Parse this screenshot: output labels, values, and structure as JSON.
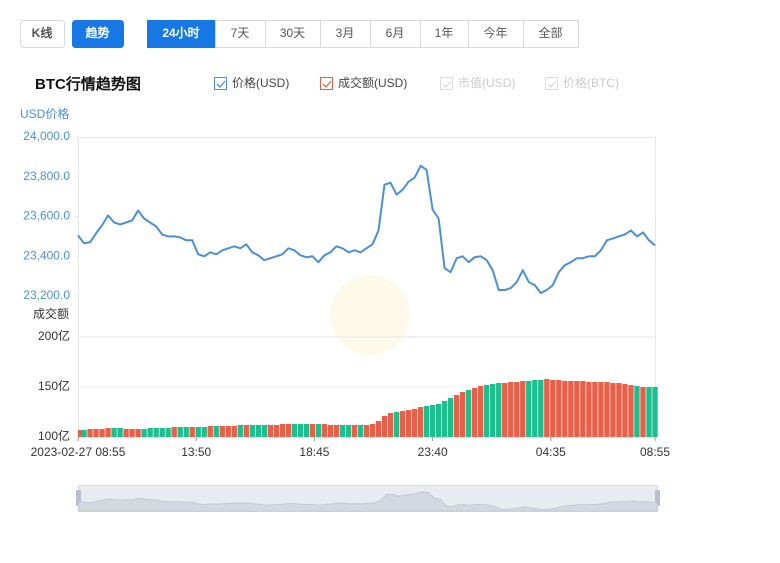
{
  "tabs": [
    "K线",
    "趋势"
  ],
  "active_tab": 1,
  "ranges": [
    "24小时",
    "7天",
    "30天",
    "3月",
    "6月",
    "1年",
    "今年",
    "全部"
  ],
  "active_range": 0,
  "chart_data": {
    "type": "line",
    "title": "BTC行情趋势图",
    "y_label": "USD价格",
    "y2_label": "成交额",
    "series": [
      {
        "name": "价格(USD)",
        "color": "#4a90d9",
        "values": [
          23505,
          23465,
          23470,
          23515,
          23555,
          23605,
          23570,
          23560,
          23570,
          23580,
          23630,
          23590,
          23570,
          23550,
          23510,
          23500,
          23500,
          23495,
          23480,
          23480,
          23410,
          23400,
          23420,
          23410,
          23430,
          23440,
          23450,
          23440,
          23460,
          23420,
          23405,
          23380,
          23390,
          23400,
          23410,
          23440,
          23430,
          23405,
          23395,
          23400,
          23370,
          23405,
          23420,
          23450,
          23440,
          23420,
          23430,
          23420,
          23440,
          23460,
          23530,
          23760,
          23770,
          23710,
          23735,
          23775,
          23795,
          23855,
          23835,
          23635,
          23590,
          23340,
          23320,
          23390,
          23400,
          23370,
          23395,
          23400,
          23380,
          23330,
          23230,
          23230,
          23240,
          23270,
          23330,
          23270,
          23255,
          23215,
          23230,
          23255,
          23320,
          23355,
          23370,
          23390,
          23390,
          23400,
          23400,
          23430,
          23480,
          23490,
          23500,
          23510,
          23530,
          23500,
          23520,
          23480,
          23455
        ]
      },
      {
        "name": "成交额(USD)",
        "color": "#e9604a",
        "axis": "y2",
        "up_color": "#e9604a",
        "down_color": "#1dbf8f",
        "values": [
          107,
          107,
          108,
          108,
          108,
          109,
          109,
          109,
          108,
          108,
          108,
          108,
          109,
          109,
          109,
          109,
          110,
          110,
          110,
          110,
          110,
          110,
          111,
          111,
          111,
          111,
          111,
          112,
          112,
          112,
          112,
          112,
          112,
          112,
          113,
          113,
          113,
          113,
          113,
          113,
          113,
          113,
          112,
          112,
          112,
          112,
          112,
          112,
          112,
          113,
          116,
          121,
          124,
          125,
          126,
          127,
          128,
          130,
          131,
          132,
          133,
          136,
          139,
          142,
          145,
          147,
          149,
          151,
          152,
          153,
          154,
          154,
          155,
          155,
          156,
          156,
          157,
          157,
          158,
          157,
          157,
          156,
          156,
          156,
          156,
          155,
          155,
          155,
          155,
          154,
          154,
          153,
          152,
          151,
          150,
          150,
          150
        ]
      }
    ],
    "inactive_series": [
      "市值(USD)",
      "价格(BTC)"
    ],
    "x": [
      0,
      15,
      30,
      45,
      60,
      75,
      90,
      105,
      120,
      135,
      150,
      165,
      180,
      195,
      210,
      225,
      240,
      255,
      270,
      285,
      300,
      315,
      330,
      345,
      360,
      375,
      390,
      405,
      420,
      435,
      450,
      465,
      480,
      495,
      510,
      525,
      540,
      555,
      570,
      585,
      600,
      615,
      630,
      645,
      660,
      675,
      690,
      705,
      720,
      735,
      750,
      765,
      780,
      795,
      810,
      825,
      840,
      855,
      870,
      885,
      900,
      915,
      930,
      945,
      960,
      975,
      990,
      1005,
      1020,
      1035,
      1050,
      1065,
      1080,
      1095,
      1110,
      1125,
      1140,
      1155,
      1170,
      1185,
      1200,
      1215,
      1230,
      1245,
      1260,
      1275,
      1290,
      1305,
      1320,
      1335,
      1350,
      1365,
      1380,
      1395,
      1410,
      1425,
      1440
    ],
    "xlim": [
      0,
      1440
    ],
    "xticks": [
      {
        "value": 0,
        "label": "2023-02-27 08:55"
      },
      {
        "value": 295,
        "label": "13:50"
      },
      {
        "value": 590,
        "label": "18:45"
      },
      {
        "value": 885,
        "label": "23:40"
      },
      {
        "value": 1180,
        "label": "04:35"
      },
      {
        "value": 1440,
        "label": "08:55"
      }
    ],
    "ylim": [
      23200,
      24000
    ],
    "yticks": [
      {
        "value": 24000,
        "label": "24,000.0"
      },
      {
        "value": 23800,
        "label": "23,800.0"
      },
      {
        "value": 23600,
        "label": "23,600.0"
      },
      {
        "value": 23400,
        "label": "23,400.0"
      },
      {
        "value": 23200,
        "label": "23,200.0"
      }
    ],
    "y2lim": [
      100,
      200
    ],
    "y2ticks": [
      {
        "value": 200,
        "label": "200亿"
      },
      {
        "value": 150,
        "label": "150亿"
      },
      {
        "value": 100,
        "label": "100亿"
      }
    ]
  }
}
